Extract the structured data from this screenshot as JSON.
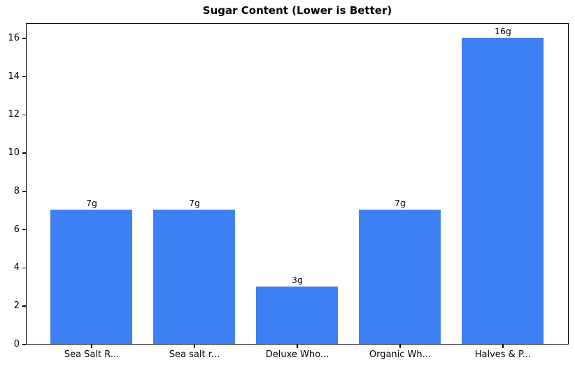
{
  "chart_data": {
    "type": "bar",
    "title": "Sugar Content (Lower is Better)",
    "categories": [
      "Sea Salt R...",
      "Sea salt r...",
      "Deluxe Who...",
      "Organic Wh...",
      "Halves & P..."
    ],
    "values": [
      7,
      7,
      3,
      7,
      16
    ],
    "bar_labels": [
      "7g",
      "7g",
      "3g",
      "7g",
      "16g"
    ],
    "xlabel": "",
    "ylabel": "",
    "ylim": [
      0,
      16.8
    ],
    "yticks": [
      0,
      2,
      4,
      6,
      8,
      10,
      12,
      14,
      16
    ],
    "bar_color": "#3d80f4",
    "grid": false,
    "legend_position": "none"
  }
}
